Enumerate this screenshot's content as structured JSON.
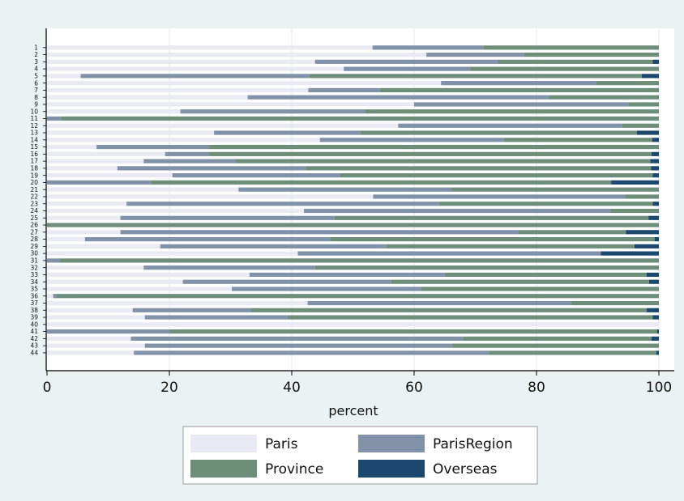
{
  "chart_data": {
    "type": "bar",
    "orientation": "horizontal",
    "stacked": true,
    "xlabel": "percent",
    "xlim": [
      0,
      100
    ],
    "xticks": [
      0,
      20,
      40,
      60,
      80,
      100
    ],
    "grid": true,
    "legend_position": "bottom",
    "categories": [
      "1",
      "2",
      "3",
      "4",
      "5",
      "6",
      "7",
      "8",
      "9",
      "10",
      "11",
      "12",
      "13",
      "14",
      "15",
      "16",
      "17",
      "18",
      "19",
      "20",
      "21",
      "22",
      "23",
      "24",
      "25",
      "26",
      "27",
      "28",
      "29",
      "30",
      "31",
      "32",
      "33",
      "34",
      "35",
      "36",
      "37",
      "38",
      "39",
      "40",
      "41",
      "42",
      "43",
      "44"
    ],
    "series": [
      {
        "name": "Paris",
        "color": "#e9eaf3",
        "values": [
          53.2,
          62.0,
          43.8,
          48.5,
          5.5,
          64.4,
          42.7,
          32.8,
          60.0,
          21.8,
          0.0,
          57.4,
          27.3,
          44.6,
          8.1,
          19.3,
          15.8,
          11.5,
          20.5,
          0.0,
          31.3,
          53.3,
          13.0,
          42.0,
          12.0,
          0.0,
          12.0,
          6.2,
          18.5,
          41.0,
          0.0,
          15.8,
          33.1,
          22.2,
          30.2,
          1.0,
          42.6,
          14.0,
          16.0,
          100.0,
          0.0,
          13.7,
          16.0,
          14.2
        ]
      },
      {
        "name": "ParisRegion",
        "color": "#8091a8",
        "values": [
          18.1,
          16.0,
          29.9,
          20.6,
          37.4,
          25.3,
          11.7,
          49.2,
          35.0,
          30.2,
          2.3,
          36.6,
          23.9,
          30.0,
          18.4,
          7.2,
          15.0,
          30.8,
          27.4,
          17.0,
          34.7,
          41.2,
          51.0,
          50.0,
          35.0,
          0.0,
          65.0,
          40.1,
          37.0,
          49.5,
          2.0,
          28.0,
          31.9,
          34.0,
          30.9,
          0.5,
          43.0,
          19.3,
          23.3,
          0.0,
          20.0,
          54.3,
          50.3,
          58.0
        ]
      },
      {
        "name": "Province",
        "color": "#6d8f7a",
        "values": [
          28.7,
          22.0,
          25.3,
          30.9,
          54.3,
          10.3,
          45.6,
          18.0,
          5.0,
          48.0,
          97.7,
          6.0,
          45.2,
          24.3,
          73.5,
          72.3,
          67.8,
          56.4,
          51.1,
          75.2,
          34.0,
          5.5,
          35.0,
          8.0,
          51.3,
          100.0,
          17.6,
          53.0,
          40.5,
          0.0,
          98.0,
          56.2,
          33.0,
          42.2,
          38.9,
          98.5,
          14.4,
          64.7,
          59.7,
          0.0,
          79.7,
          30.8,
          33.7,
          27.4
        ]
      },
      {
        "name": "Overseas",
        "color": "#1c4870",
        "values": [
          0.0,
          0.0,
          1.0,
          0.0,
          2.8,
          0.0,
          0.0,
          0.0,
          0.0,
          0.0,
          0.0,
          0.0,
          3.6,
          1.1,
          0.0,
          1.2,
          1.4,
          1.3,
          1.0,
          7.8,
          0.0,
          0.0,
          1.0,
          0.0,
          1.7,
          0.0,
          5.4,
          0.7,
          4.0,
          9.5,
          0.0,
          0.0,
          2.0,
          1.6,
          0.0,
          0.0,
          0.0,
          2.0,
          1.0,
          0.0,
          0.3,
          1.2,
          0.0,
          0.4
        ]
      }
    ]
  }
}
